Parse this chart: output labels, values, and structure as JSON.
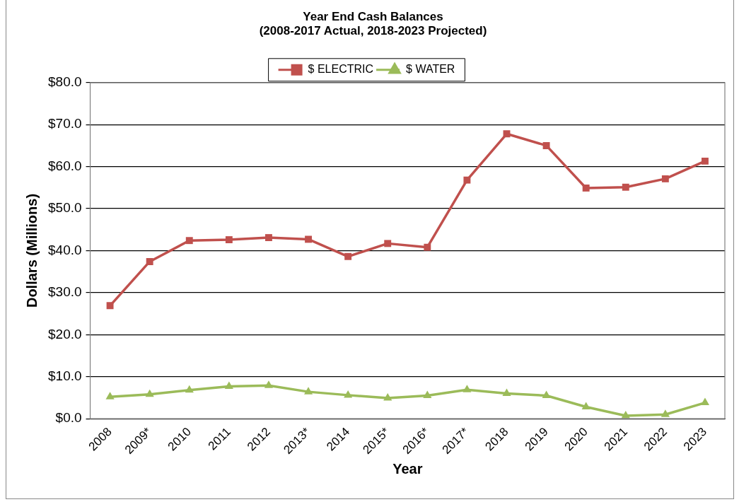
{
  "chart_data": {
    "type": "line",
    "title": [
      "Year End Cash Balances",
      "(2008-2017 Actual, 2018-2023 Projected)"
    ],
    "xlabel": "Year",
    "ylabel": "Dollars (Millions)",
    "categories": [
      "2008",
      "2009*",
      "2010",
      "2011",
      "2012",
      "2013*",
      "2014",
      "2015*",
      "2016*",
      "2017*",
      "2018",
      "2019",
      "2020",
      "2021",
      "2022",
      "2023"
    ],
    "series": [
      {
        "name": "$ ELECTRIC",
        "color": "#c0504d",
        "marker": "square",
        "values": [
          26.9,
          37.4,
          42.4,
          42.6,
          43.1,
          42.7,
          38.6,
          41.7,
          40.8,
          56.8,
          67.8,
          65.0,
          54.9,
          55.1,
          57.1,
          61.3
        ]
      },
      {
        "name": "$ WATER",
        "color": "#9bbb59",
        "marker": "triangle",
        "values": [
          5.2,
          5.8,
          6.8,
          7.7,
          7.9,
          6.4,
          5.6,
          4.9,
          5.5,
          6.9,
          6.0,
          5.5,
          2.8,
          0.7,
          1.0,
          3.8
        ]
      }
    ],
    "ylim": [
      0,
      80
    ],
    "yticks": [
      {
        "value": 0,
        "label": "$0.0"
      },
      {
        "value": 10,
        "label": "$10.0"
      },
      {
        "value": 20,
        "label": "$20.0"
      },
      {
        "value": 30,
        "label": "$30.0"
      },
      {
        "value": 40,
        "label": "$40.0"
      },
      {
        "value": 50,
        "label": "$50.0"
      },
      {
        "value": 60,
        "label": "$60.0"
      },
      {
        "value": 70,
        "label": "$70.0"
      },
      {
        "value": 80,
        "label": "$80.0"
      }
    ],
    "grid": "y",
    "legend": "top",
    "line_style": "solid"
  }
}
